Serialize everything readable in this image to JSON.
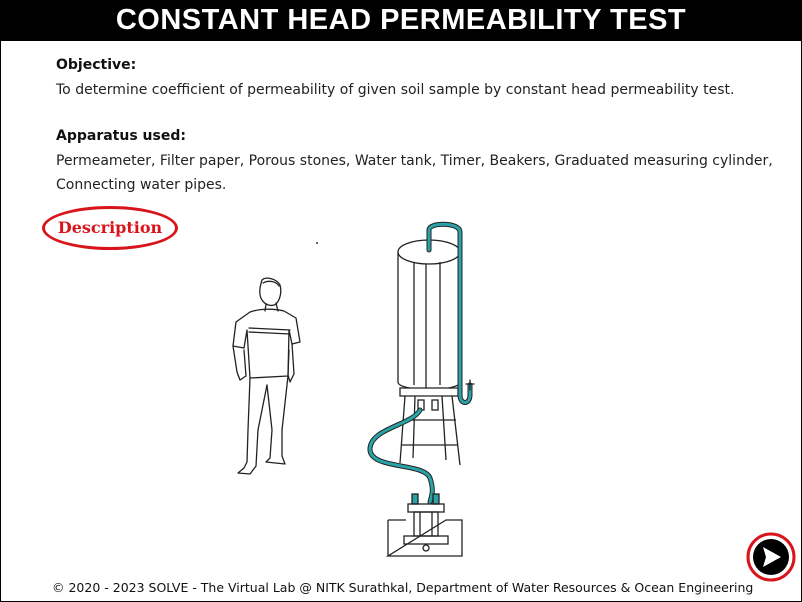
{
  "header": {
    "title": "CONSTANT HEAD PERMEABILITY TEST"
  },
  "objective": {
    "heading": "Objective:",
    "text": "To determine coefficient of permeability of given soil sample by constant head permeability test."
  },
  "apparatus": {
    "heading": "Apparatus used:",
    "text": "Permeameter, Filter paper, Porous stones, Water tank, Timer, Beakers, Graduated measuring cylinder, Connecting water pipes."
  },
  "description_button": {
    "label": "Description"
  },
  "footer": {
    "text": "© 2020 - 2023 SOLVE - The Virtual Lab @ NITK Surathkal, Department of Water Resources & Ocean Engineering"
  },
  "next_button": {
    "icon": "next-arrow-icon",
    "accent": "#d9141b"
  },
  "colors": {
    "pipe": "#2aa3a8",
    "accent": "#d9141b"
  }
}
